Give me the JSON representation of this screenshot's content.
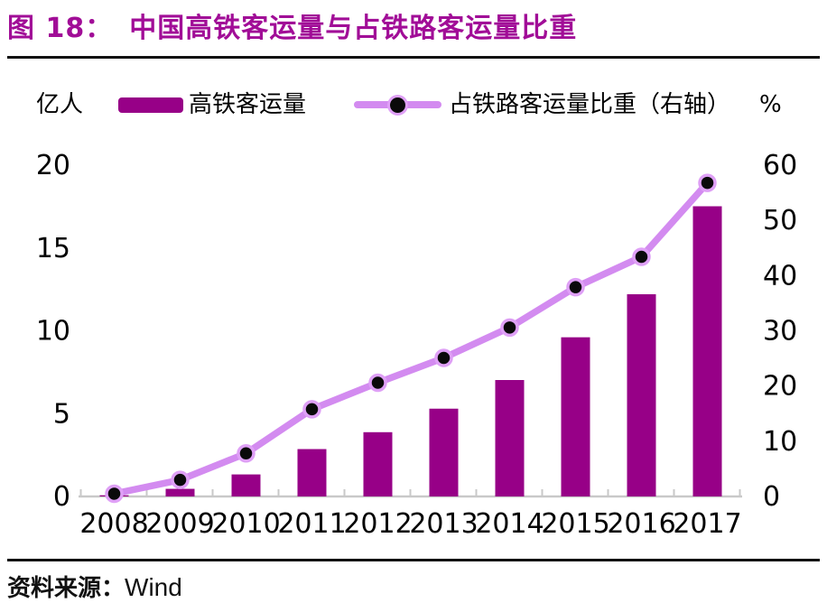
{
  "header": {
    "figure_prefix": "图 18：",
    "title": "中国高铁客运量与占铁路客运量比重"
  },
  "legend": {
    "bar_label": "高铁客运量",
    "line_label": "占铁路客运量比重（右轴）"
  },
  "axes": {
    "left_unit": "亿人",
    "right_unit": "%"
  },
  "footer": {
    "source_label": "资料来源：",
    "source_value": "Wind"
  },
  "colors": {
    "title": "#A10D97",
    "bar": "#970087",
    "line": "#D38BF0",
    "marker_core": "#0A0A0A",
    "marker_ring": "#DFA0F6",
    "axis": "#C9C9C9",
    "text": "#000000"
  },
  "chart_data": {
    "type": "bar",
    "title": "中国高铁客运量与占铁路客运量比重",
    "categories": [
      "2008",
      "2009",
      "2010",
      "2011",
      "2012",
      "2013",
      "2014",
      "2015",
      "2016",
      "2017"
    ],
    "series": [
      {
        "name": "高铁客运量",
        "type": "bar",
        "axis": "left",
        "unit": "亿人",
        "values": [
          0.07,
          0.46,
          1.33,
          2.86,
          3.88,
          5.3,
          7.03,
          9.61,
          12.21,
          17.52
        ]
      },
      {
        "name": "占铁路客运量比重（右轴）",
        "type": "line",
        "axis": "right",
        "unit": "%",
        "values": [
          0.5,
          3.0,
          7.8,
          15.8,
          20.6,
          25.1,
          30.6,
          37.9,
          43.4,
          56.8
        ]
      }
    ],
    "left_axis": {
      "label": "亿人",
      "ticks": [
        0,
        5,
        10,
        15,
        20
      ],
      "range": [
        0,
        20
      ]
    },
    "right_axis": {
      "label": "%",
      "ticks": [
        0,
        10,
        20,
        30,
        40,
        50,
        60
      ],
      "range": [
        0,
        60
      ]
    },
    "grid": false,
    "legend_position": "top"
  }
}
